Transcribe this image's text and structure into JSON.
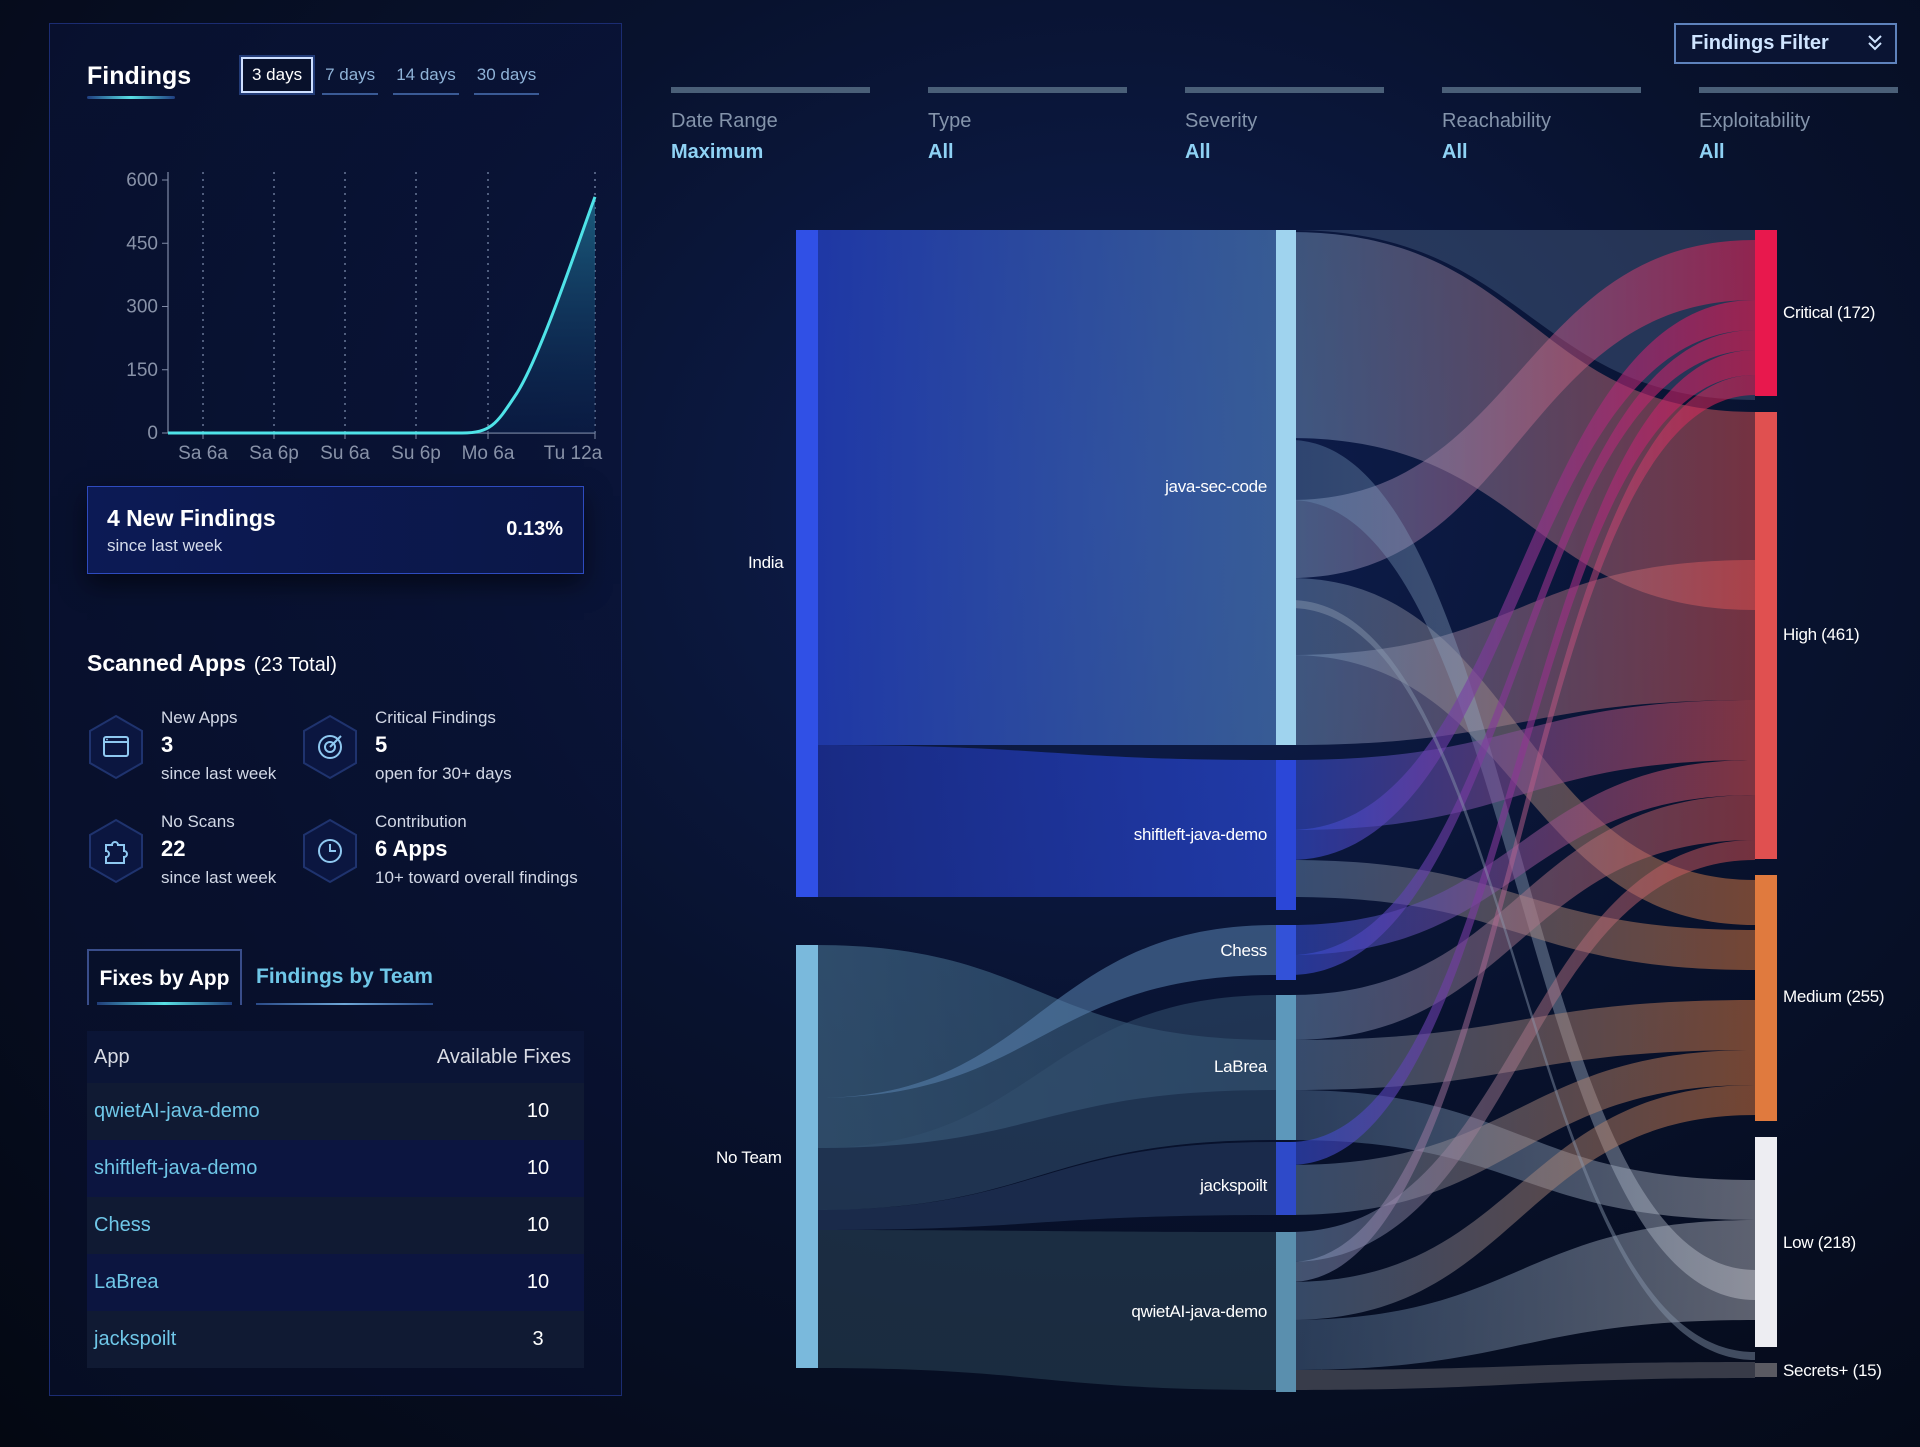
{
  "findings_panel": {
    "title": "Findings",
    "ranges": [
      {
        "label": "3 days",
        "active": true
      },
      {
        "label": "7 days",
        "active": false
      },
      {
        "label": "14 days",
        "active": false
      },
      {
        "label": "30 days",
        "active": false
      }
    ],
    "chart_data": {
      "type": "area",
      "x": [
        "Sa 6a",
        "Sa 6p",
        "Su 6a",
        "Su 6p",
        "Mo 6a",
        "Tu 12a"
      ],
      "y_ticks": [
        0,
        150,
        300,
        450,
        600
      ],
      "ylim": [
        0,
        600
      ],
      "series": [
        {
          "values": [
            0,
            0,
            0,
            0,
            25,
            560
          ]
        }
      ],
      "grid": "vertical dotted",
      "line_color": "#4fe3e8"
    }
  },
  "new_findings": {
    "title": "4 New Findings",
    "subtitle": "since last week",
    "percent": "0.13%"
  },
  "scanned_apps": {
    "title": "Scanned Apps",
    "total": "(23 Total)",
    "stats": [
      {
        "label": "New Apps",
        "value": "3",
        "sub": "since last week",
        "icon": "app-window-icon"
      },
      {
        "label": "Critical Findings",
        "value": "5",
        "sub": "open for 30+ days",
        "icon": "target-icon"
      },
      {
        "label": "No Scans",
        "value": "22",
        "sub": "since last week",
        "icon": "puzzle-icon"
      },
      {
        "label": "Contribution",
        "value": "6 Apps",
        "sub": "10+ toward overall findings",
        "icon": "clock-icon"
      }
    ]
  },
  "fixes_tabs": [
    "Fixes by App",
    "Findings by Team"
  ],
  "fixes_table": {
    "headers": [
      "App",
      "Available Fixes"
    ],
    "rows": [
      {
        "app": "qwietAI-java-demo",
        "fixes": "10"
      },
      {
        "app": "shiftleft-java-demo",
        "fixes": "10"
      },
      {
        "app": "Chess",
        "fixes": "10"
      },
      {
        "app": "LaBrea",
        "fixes": "10"
      },
      {
        "app": "jackspoilt",
        "fixes": "3"
      }
    ]
  },
  "filter_button": {
    "label": "Findings Filter",
    "icon": "double-chevron-down-icon"
  },
  "filters": [
    {
      "label": "Date Range",
      "value": "Maximum"
    },
    {
      "label": "Type",
      "value": "All"
    },
    {
      "label": "Severity",
      "value": "All"
    },
    {
      "label": "Reachability",
      "value": "All"
    },
    {
      "label": "Exploitability",
      "value": "All"
    }
  ],
  "sankey": {
    "teams": [
      {
        "label": "India",
        "color": "#3050e6"
      },
      {
        "label": "No Team",
        "color": "#7ab9dc"
      }
    ],
    "apps": [
      {
        "label": "java-sec-code",
        "color": "#9fd3ee"
      },
      {
        "label": "shiftleft-java-demo",
        "color": "#2b47d8"
      },
      {
        "label": "Chess",
        "color": "#3352d8"
      },
      {
        "label": "LaBrea",
        "color": "#5d98bb"
      },
      {
        "label": "jackspoilt",
        "color": "#2e4ac9"
      },
      {
        "label": "qwietAI-java-demo",
        "color": "#5a8fae"
      }
    ],
    "severities": [
      {
        "label": "Critical (172)",
        "color": "#e8184d"
      },
      {
        "label": "High (461)",
        "color": "#e05050"
      },
      {
        "label": "Medium (255)",
        "color": "#e07a3e"
      },
      {
        "label": "Low (218)",
        "color": "#e8e8ee"
      },
      {
        "label": "Secrets+ (15)",
        "color": "#5a5a62"
      }
    ]
  }
}
